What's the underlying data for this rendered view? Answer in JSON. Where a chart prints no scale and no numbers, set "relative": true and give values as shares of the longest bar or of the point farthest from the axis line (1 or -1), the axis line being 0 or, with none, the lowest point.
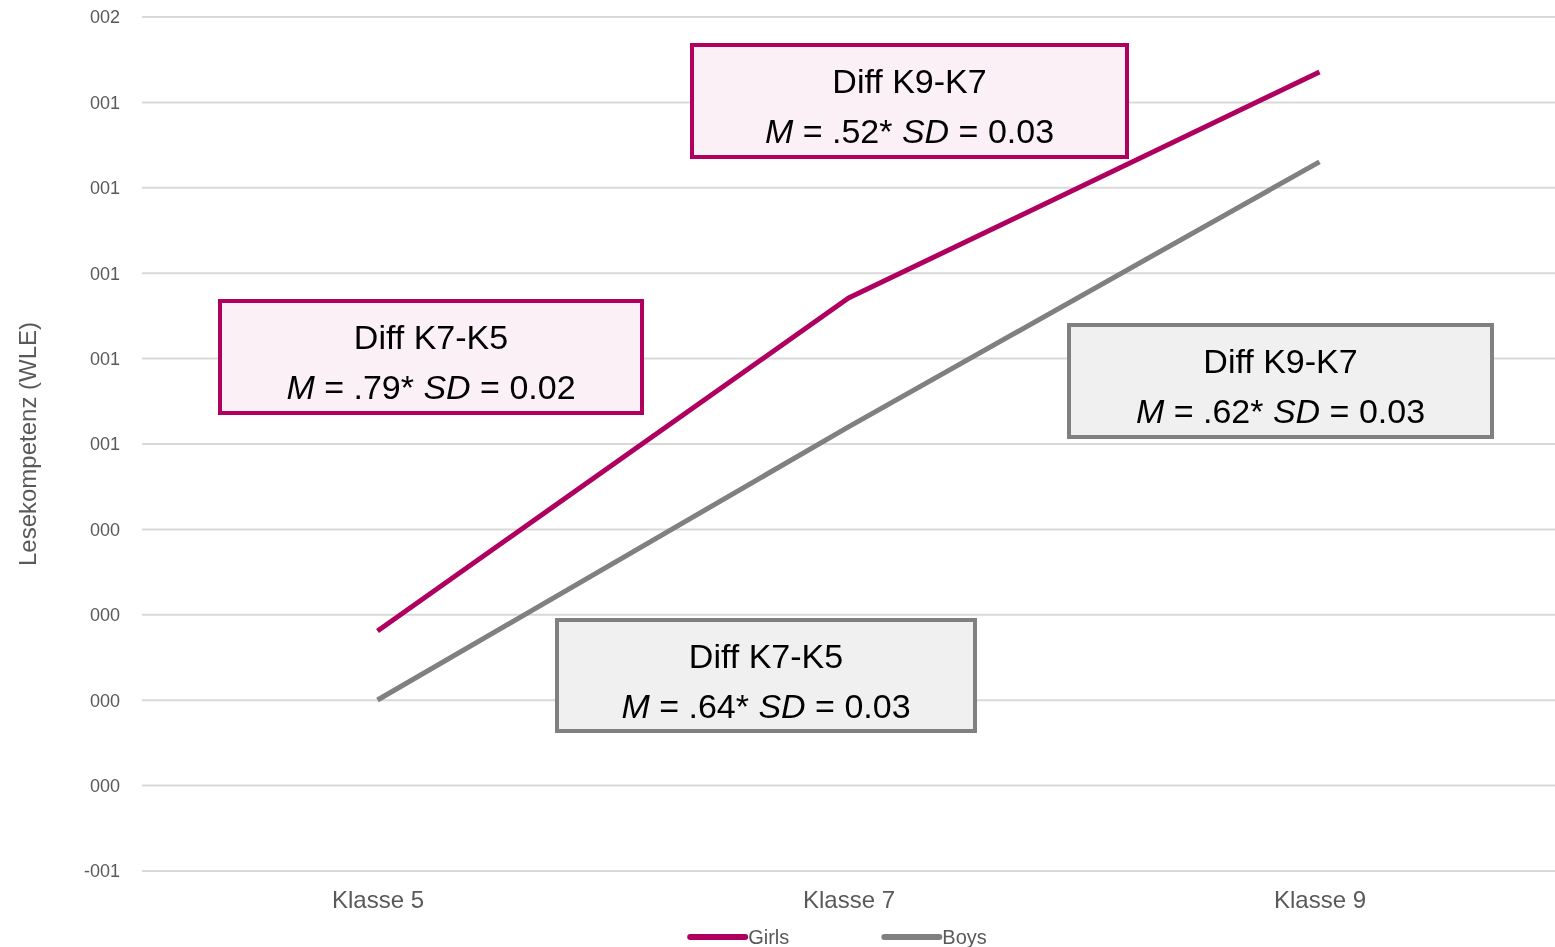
{
  "chart_data": {
    "type": "line",
    "ylabel": "Lesekompetenz (WLE)",
    "categories": [
      "Klasse 5",
      "Klasse 7",
      "Klasse 9"
    ],
    "relative": true,
    "series": [
      {
        "name": "Girls",
        "color": "#b0005f",
        "values": [
          0.11,
          0.64,
          1
        ]
      },
      {
        "name": "Boys",
        "color": "#808080",
        "values": [
          0,
          0.435,
          0.857
        ]
      }
    ],
    "grid": "y",
    "legend": "bottom",
    "marker": "none",
    "line_style": "solid",
    "annotations": [
      "Diff K7-K5\nM = .79* SD = 0.02",
      "Diff K9-K7\nM = .52* SD = 0.03",
      "Diff K9-K7\nM = .62* SD = 0.03",
      "Diff K7-K5\nM = .64* SD = 0.03",
      "002",
      "001",
      "001",
      "001",
      "001",
      "001",
      "000",
      "000",
      "000",
      "000",
      "-001"
    ]
  }
}
